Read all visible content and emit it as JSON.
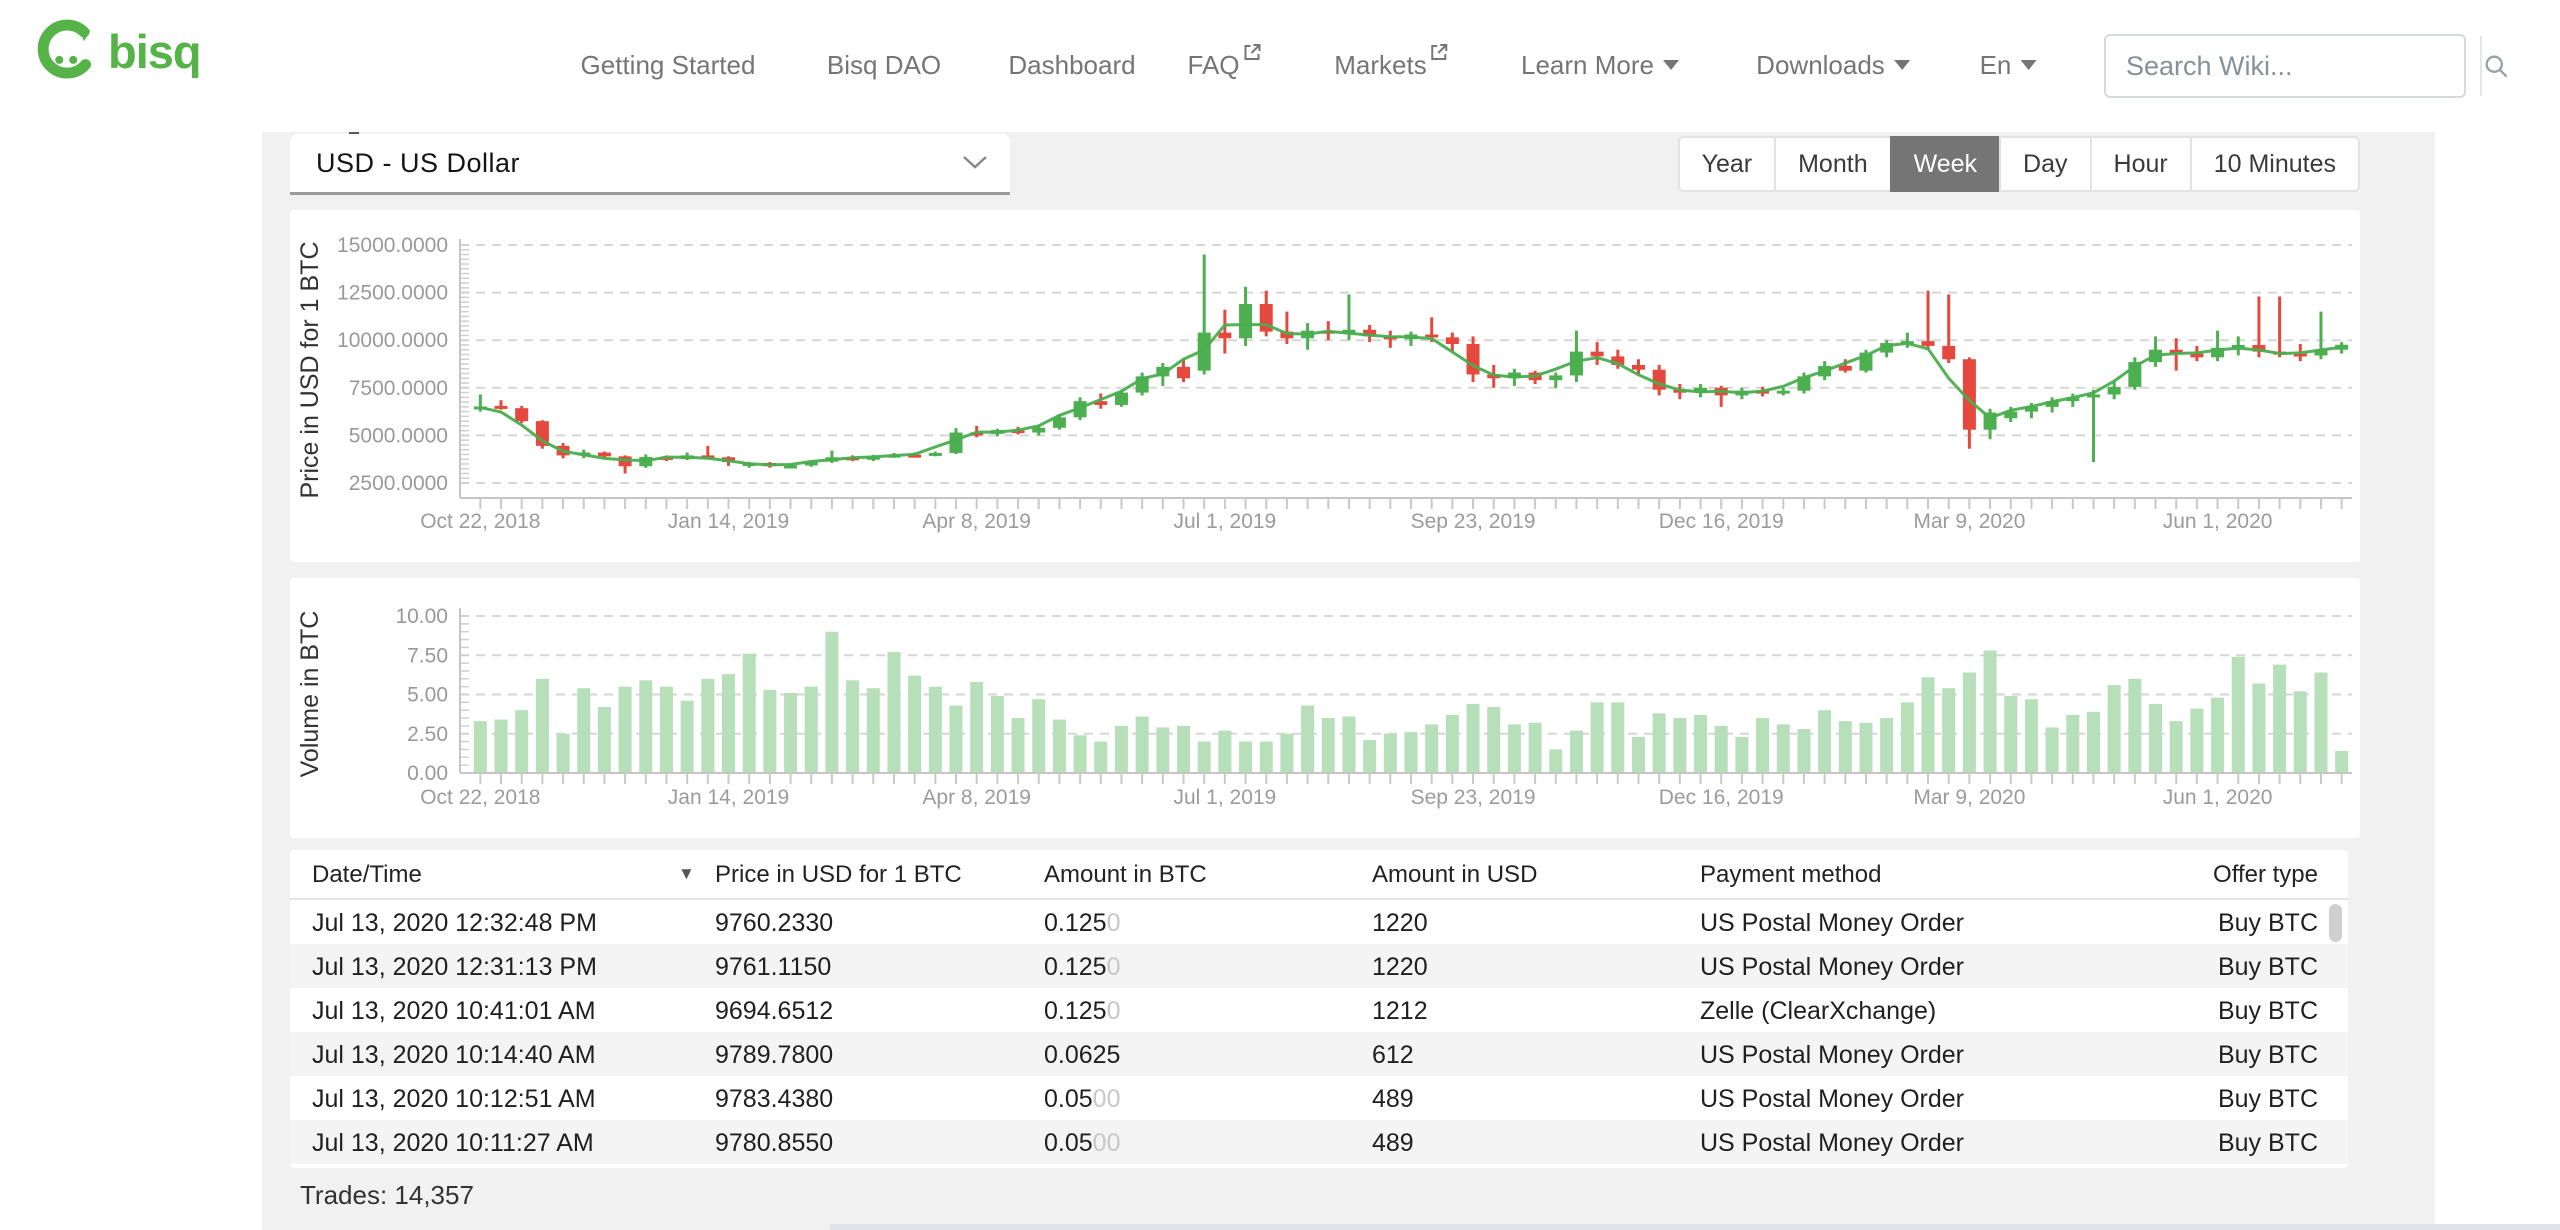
{
  "brand": {
    "name": "bisq",
    "green": "#56b347"
  },
  "nav": {
    "items": [
      {
        "label": "Getting Started",
        "type": "link"
      },
      {
        "label": "Bisq DAO",
        "type": "link"
      },
      {
        "label": "Dashboard",
        "type": "link"
      },
      {
        "label": "FAQ",
        "type": "external"
      },
      {
        "label": "Markets",
        "type": "external"
      },
      {
        "label": "Learn More",
        "type": "dropdown"
      },
      {
        "label": "Downloads",
        "type": "dropdown"
      },
      {
        "label": "En",
        "type": "dropdown"
      }
    ],
    "search_placeholder": "Search Wiki..."
  },
  "controls": {
    "currency_selected": "USD  -  US Dollar",
    "intervals": [
      "Year",
      "Month",
      "Week",
      "Day",
      "Hour",
      "10 Minutes"
    ],
    "interval_active": "Week"
  },
  "chart_data": [
    {
      "type": "candlestick",
      "ylabel": "Price in USD for 1 BTC",
      "y_ticks": [
        15000,
        12500,
        10000,
        7500,
        5000,
        2500
      ],
      "y_tick_labels": [
        "15000.0000",
        "12500.0000",
        "10000.0000",
        "7500.0000",
        "5000.0000",
        "2500.0000"
      ],
      "ylim": [
        2500,
        15000
      ],
      "x_tick_labels": [
        "Oct 22, 2018",
        "Jan 14, 2019",
        "Apr 8, 2019",
        "Jul 1, 2019",
        "Sep 23, 2019",
        "Dec 16, 2019",
        "Mar 9, 2020",
        "Jun 1, 2020"
      ],
      "x_tick_indices": [
        0,
        12,
        24,
        36,
        48,
        60,
        72,
        84
      ],
      "grid": true,
      "colors": {
        "up": "#4caf50",
        "down": "#e5493d",
        "ma_line": "#4aad4f"
      },
      "candles_ohlc": [
        [
          6400,
          7150,
          6250,
          6520
        ],
        [
          6550,
          6850,
          6350,
          6420
        ],
        [
          6430,
          6550,
          5650,
          5750
        ],
        [
          5750,
          5800,
          4300,
          4450
        ],
        [
          4450,
          4600,
          3800,
          3950
        ],
        [
          3950,
          4250,
          3800,
          4100
        ],
        [
          4100,
          4150,
          3800,
          3900
        ],
        [
          3900,
          3950,
          3000,
          3380
        ],
        [
          3380,
          4000,
          3300,
          3870
        ],
        [
          3870,
          3950,
          3650,
          3750
        ],
        [
          3750,
          4100,
          3700,
          3950
        ],
        [
          3950,
          4450,
          3800,
          3850
        ],
        [
          3850,
          3900,
          3400,
          3600
        ],
        [
          3450,
          3600,
          3300,
          3550
        ],
        [
          3550,
          3600,
          3300,
          3380
        ],
        [
          3380,
          3500,
          3300,
          3420
        ],
        [
          3420,
          3700,
          3350,
          3620
        ],
        [
          3620,
          4200,
          3550,
          3850
        ],
        [
          3850,
          3950,
          3650,
          3720
        ],
        [
          3720,
          3980,
          3650,
          3900
        ],
        [
          3900,
          4080,
          3820,
          3990
        ],
        [
          3990,
          4100,
          3880,
          3950
        ],
        [
          3950,
          4150,
          3900,
          4080
        ],
        [
          4080,
          5380,
          4020,
          5150
        ],
        [
          5150,
          5500,
          4900,
          5080
        ],
        [
          5080,
          5350,
          4950,
          5280
        ],
        [
          5280,
          5450,
          5050,
          5150
        ],
        [
          5150,
          5500,
          5000,
          5400
        ],
        [
          5400,
          6100,
          5300,
          5950
        ],
        [
          5950,
          7000,
          5800,
          6800
        ],
        [
          6800,
          7200,
          6400,
          6600
        ],
        [
          6600,
          7400,
          6500,
          7250
        ],
        [
          7250,
          8300,
          7100,
          8100
        ],
        [
          8100,
          8800,
          7600,
          8600
        ],
        [
          8600,
          9000,
          7800,
          8000
        ],
        [
          8400,
          14500,
          8200,
          10400
        ],
        [
          10400,
          11600,
          9300,
          10100
        ],
        [
          10100,
          12800,
          9700,
          11900
        ],
        [
          11900,
          12600,
          10200,
          10450
        ],
        [
          10450,
          11500,
          9800,
          10100
        ],
        [
          10100,
          10900,
          9500,
          10500
        ],
        [
          10500,
          11000,
          10000,
          10350
        ],
        [
          10350,
          12400,
          10000,
          10550
        ],
        [
          10550,
          10800,
          9900,
          10200
        ],
        [
          10200,
          10500,
          9600,
          10050
        ],
        [
          10050,
          10450,
          9700,
          10300
        ],
        [
          10300,
          11200,
          9900,
          10150
        ],
        [
          10150,
          10400,
          9400,
          9800
        ],
        [
          9800,
          10200,
          7800,
          8200
        ],
        [
          8200,
          8700,
          7500,
          8000
        ],
        [
          8000,
          8500,
          7600,
          8300
        ],
        [
          8300,
          8400,
          7700,
          7900
        ],
        [
          7900,
          8300,
          7500,
          8150
        ],
        [
          8150,
          10500,
          7800,
          9400
        ],
        [
          9400,
          9900,
          8700,
          9150
        ],
        [
          9150,
          9500,
          8500,
          8700
        ],
        [
          8700,
          9000,
          8200,
          8450
        ],
        [
          8450,
          8700,
          7100,
          7400
        ],
        [
          7400,
          7700,
          6900,
          7250
        ],
        [
          7250,
          7700,
          7000,
          7500
        ],
        [
          7500,
          7600,
          6500,
          7100
        ],
        [
          7100,
          7500,
          6900,
          7350
        ],
        [
          7350,
          7550,
          7050,
          7280
        ],
        [
          7280,
          7500,
          7100,
          7350
        ],
        [
          7350,
          8300,
          7200,
          8100
        ],
        [
          8100,
          8900,
          7900,
          8650
        ],
        [
          8650,
          9000,
          8300,
          8400
        ],
        [
          8400,
          9500,
          8300,
          9350
        ],
        [
          9350,
          10000,
          9100,
          9850
        ],
        [
          9850,
          10400,
          9600,
          9950
        ],
        [
          9950,
          12600,
          9500,
          9700
        ],
        [
          9700,
          12400,
          8800,
          9000
        ],
        [
          9000,
          9100,
          4300,
          5300
        ],
        [
          5300,
          6400,
          4800,
          6200
        ],
        [
          5900,
          6500,
          5700,
          6250
        ],
        [
          6250,
          6700,
          5900,
          6500
        ],
        [
          6500,
          7000,
          6200,
          6800
        ],
        [
          6800,
          7200,
          6500,
          7000
        ],
        [
          7000,
          7400,
          3600,
          7150
        ],
        [
          7150,
          7800,
          6900,
          7550
        ],
        [
          7550,
          9100,
          7400,
          8850
        ],
        [
          8850,
          10200,
          8600,
          9500
        ],
        [
          9500,
          10100,
          8400,
          9300
        ],
        [
          9300,
          9700,
          8900,
          9100
        ],
        [
          9100,
          10500,
          8900,
          9600
        ],
        [
          9600,
          10200,
          9200,
          9750
        ],
        [
          9750,
          12300,
          9100,
          9400
        ],
        [
          9400,
          12300,
          9100,
          9300
        ],
        [
          9300,
          9800,
          8900,
          9200
        ],
        [
          9200,
          11500,
          9000,
          9500
        ],
        [
          9500,
          9900,
          9300,
          9760
        ]
      ]
    },
    {
      "type": "bar",
      "ylabel": "Volume in BTC",
      "y_ticks": [
        10.0,
        7.5,
        5.0,
        2.5,
        0.0
      ],
      "y_tick_labels": [
        "10.00",
        "7.50",
        "5.00",
        "2.50",
        "0.00"
      ],
      "ylim": [
        0,
        10
      ],
      "x_tick_labels": [
        "Oct 22, 2018",
        "Jan 14, 2019",
        "Apr 8, 2019",
        "Jul 1, 2019",
        "Sep 23, 2019",
        "Dec 16, 2019",
        "Mar 9, 2020",
        "Jun 1, 2020"
      ],
      "x_tick_indices": [
        0,
        12,
        24,
        36,
        48,
        60,
        72,
        84
      ],
      "grid": true,
      "bar_color": "#b7dfb9",
      "values": [
        3.3,
        3.4,
        4.0,
        6.0,
        2.5,
        5.4,
        4.2,
        5.5,
        5.9,
        5.5,
        4.6,
        6.0,
        6.3,
        7.6,
        5.3,
        5.1,
        5.5,
        9.0,
        5.9,
        5.4,
        7.7,
        6.2,
        5.5,
        4.3,
        5.8,
        4.9,
        3.5,
        4.7,
        3.4,
        2.4,
        2.0,
        3.0,
        3.6,
        2.9,
        3.0,
        2.0,
        2.7,
        2.0,
        2.0,
        2.5,
        4.3,
        3.5,
        3.6,
        2.1,
        2.5,
        2.6,
        3.1,
        3.7,
        4.4,
        4.2,
        3.1,
        3.2,
        1.5,
        2.7,
        4.5,
        4.5,
        2.3,
        3.8,
        3.5,
        3.7,
        3.0,
        2.3,
        3.5,
        3.1,
        2.8,
        4.0,
        3.3,
        3.2,
        3.5,
        4.5,
        6.1,
        5.4,
        6.4,
        7.8,
        4.9,
        4.7,
        2.9,
        3.7,
        3.9,
        5.6,
        6.0,
        4.4,
        3.3,
        4.1,
        4.8,
        7.4,
        5.7,
        6.9,
        5.2,
        6.4,
        1.4
      ]
    }
  ],
  "table": {
    "headers": [
      "Date/Time",
      "Price in USD for 1 BTC",
      "Amount in BTC",
      "Amount in USD",
      "Payment method",
      "Offer type"
    ],
    "sorted_by": "Date/Time",
    "rows": [
      {
        "datetime": "Jul 13, 2020 12:32:48 PM",
        "price": "9760.2330",
        "amount_btc": "0.125",
        "amount_btc_pad": "0",
        "amount_usd": "1220",
        "payment": "US Postal Money Order",
        "offer": "Buy BTC"
      },
      {
        "datetime": "Jul 13, 2020 12:31:13 PM",
        "price": "9761.1150",
        "amount_btc": "0.125",
        "amount_btc_pad": "0",
        "amount_usd": "1220",
        "payment": "US Postal Money Order",
        "offer": "Buy BTC"
      },
      {
        "datetime": "Jul 13, 2020 10:41:01 AM",
        "price": "9694.6512",
        "amount_btc": "0.125",
        "amount_btc_pad": "0",
        "amount_usd": "1212",
        "payment": "Zelle (ClearXchange)",
        "offer": "Buy BTC"
      },
      {
        "datetime": "Jul 13, 2020 10:14:40 AM",
        "price": "9789.7800",
        "amount_btc": "0.0625",
        "amount_btc_pad": "",
        "amount_usd": "612",
        "payment": "US Postal Money Order",
        "offer": "Buy BTC"
      },
      {
        "datetime": "Jul 13, 2020 10:12:51 AM",
        "price": "9783.4380",
        "amount_btc": "0.05",
        "amount_btc_pad": "00",
        "amount_usd": "489",
        "payment": "US Postal Money Order",
        "offer": "Buy BTC"
      },
      {
        "datetime": "Jul 13, 2020 10:11:27 AM",
        "price": "9780.8550",
        "amount_btc": "0.05",
        "amount_btc_pad": "00",
        "amount_usd": "489",
        "payment": "US Postal Money Order",
        "offer": "Buy BTC"
      }
    ]
  },
  "footer": {
    "trades_label": "Trades: 14,357"
  }
}
